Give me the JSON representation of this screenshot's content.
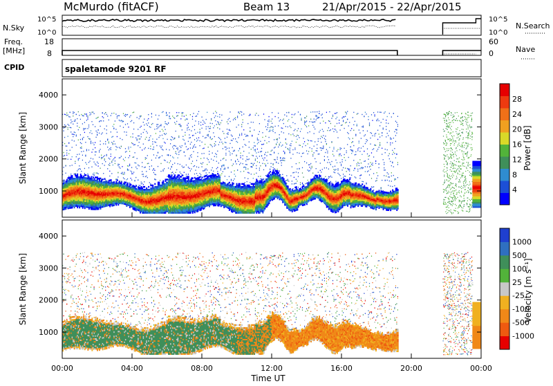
{
  "header": {
    "station": "McMurdo (fitACF)",
    "beam": "Beam 13",
    "date_range": "21/Apr/2015 - 22/Apr/2015"
  },
  "left_labels": {
    "nsky": "N.Sky",
    "freq_line1": "Freq.",
    "freq_line2": "[MHz]",
    "cpid": "CPID"
  },
  "right_labels": {
    "nsearch": "N.Search",
    "nave": "Nave"
  },
  "cpid_mode": "spaletamode 9201 RF",
  "chart_data": [
    {
      "type": "line",
      "name": "noise_panel",
      "y_ticks_left": [
        "10^5",
        "10^0"
      ],
      "y_ticks_right": [
        "10^5",
        "10^0"
      ]
    },
    {
      "type": "line",
      "name": "freq_panel",
      "y_ticks_left": [
        "18",
        "8"
      ],
      "y_ticks_right": [
        "60",
        "0"
      ]
    },
    {
      "type": "heatmap",
      "name": "power",
      "ylabel": "Slant Range [km]",
      "ylim": [
        180,
        4500
      ],
      "y_ticks": [
        "1000",
        "2000",
        "3000",
        "4000"
      ],
      "x_ticks": [
        "00:00",
        "04:00",
        "08:00",
        "12:00",
        "16:00",
        "20:00",
        "00:00"
      ],
      "xlim_hours": [
        0,
        24
      ],
      "data_gap_hours": [
        19.2,
        21.8
      ],
      "colorbar": {
        "label": "Power [dB]",
        "ticks": [
          "4",
          "8",
          "12",
          "16",
          "20",
          "24",
          "28"
        ],
        "colors": [
          "#0000ff",
          "#1c4fd6",
          "#2f8cd0",
          "#3f8f5a",
          "#52b33a",
          "#d9d928",
          "#f0a020",
          "#f07018",
          "#ee3a10",
          "#e60000"
        ]
      }
    },
    {
      "type": "heatmap",
      "name": "velocity",
      "ylabel": "Slant Range [km]",
      "xlabel": "Time UT",
      "ylim": [
        180,
        4500
      ],
      "y_ticks": [
        "1000",
        "2000",
        "3000",
        "4000"
      ],
      "x_ticks": [
        "00:00",
        "04:00",
        "08:00",
        "12:00",
        "16:00",
        "20:00",
        "00:00"
      ],
      "xlim_hours": [
        0,
        24
      ],
      "data_gap_hours": [
        19.2,
        21.8
      ],
      "colorbar": {
        "label": "Velocity [m s⁻¹]",
        "ticks": [
          "1000",
          "500",
          "100",
          "25",
          "-25",
          "-100",
          "-500",
          "-1000"
        ],
        "colors": [
          "#1f3fcf",
          "#2f6fc0",
          "#3f8f5a",
          "#52b33a",
          "#c8c8c8",
          "#f0b020",
          "#f08818",
          "#ee5a10",
          "#e60000"
        ]
      }
    }
  ]
}
